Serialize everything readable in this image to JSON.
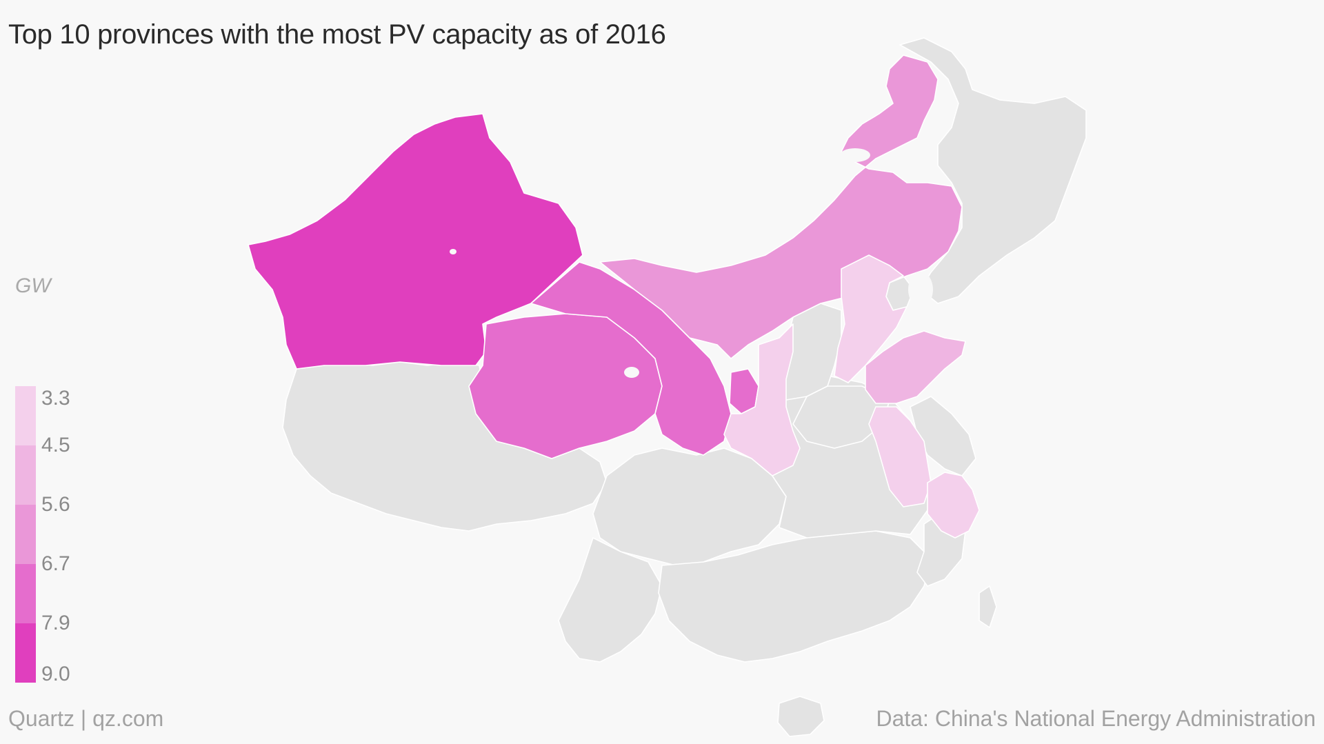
{
  "header": {
    "title": "Top 10 provinces with the most PV capacity as of 2016"
  },
  "legend": {
    "unit": "GW",
    "stops": [
      {
        "label": "3.3",
        "color": "#f4d0ec"
      },
      {
        "label": "4.5",
        "color": "#efb5e2"
      },
      {
        "label": "5.6",
        "color": "#ea97d8"
      },
      {
        "label": "6.7",
        "color": "#e56dcd"
      },
      {
        "label": "7.9",
        "color": "#e03fbe"
      },
      {
        "label": "9.0",
        "color": ""
      }
    ]
  },
  "footer": {
    "source": "Quartz | qz.com",
    "credit": "Data: China's National Energy Administration"
  },
  "map": {
    "no_data_color": "#e3e3e3",
    "water_color": "#f8f8f8",
    "provinces": [
      {
        "name": "Xinjiang",
        "capacity_bin": "7.9-9.0",
        "color": "#e03fbe"
      },
      {
        "name": "Qinghai",
        "capacity_bin": "6.7-7.9",
        "color": "#e56dcd"
      },
      {
        "name": "Gansu",
        "capacity_bin": "6.7-7.9",
        "color": "#e56dcd"
      },
      {
        "name": "Ningxia",
        "capacity_bin": "6.7-7.9",
        "color": "#e56dcd"
      },
      {
        "name": "Inner Mongolia",
        "capacity_bin": "5.6-6.7",
        "color": "#ea97d8"
      },
      {
        "name": "Shandong",
        "capacity_bin": "4.5-5.6",
        "color": "#efb5e2"
      },
      {
        "name": "Shaanxi",
        "capacity_bin": "3.3-4.5",
        "color": "#f4d0ec"
      },
      {
        "name": "Hebei",
        "capacity_bin": "3.3-4.5",
        "color": "#f4d0ec"
      },
      {
        "name": "Anhui",
        "capacity_bin": "3.3-4.5",
        "color": "#f4d0ec"
      },
      {
        "name": "Zhejiang",
        "capacity_bin": "3.3-4.5",
        "color": "#f4d0ec"
      }
    ]
  }
}
